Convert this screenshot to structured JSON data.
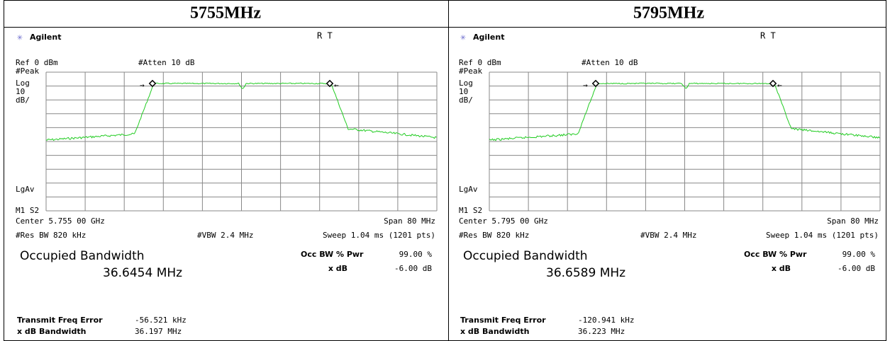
{
  "panels": [
    {
      "title": "5755MHz",
      "brand": "Agilent",
      "status": "R  T",
      "ref": "Ref 0 dBm",
      "atten": "#Atten 10 dB",
      "left_labels": [
        "#Peak",
        "Log",
        "10",
        "dB/"
      ],
      "lgav": "LgAv",
      "m1": "M1  S2",
      "center": "Center 5.755 00 GHz",
      "span": "Span 80 MHz",
      "res_bw": "#Res BW 820 kHz",
      "vbw": "#VBW 2.4 MHz",
      "sweep": "Sweep 1.04 ms (1201 pts)",
      "occ_title": "Occupied Bandwidth",
      "occ_value": "36.6454 MHz",
      "occ_pwr_label": "Occ BW % Pwr",
      "occ_pwr_value": "99.00 %",
      "xdb_label": "x dB",
      "xdb_value": "-6.00 dB",
      "tfe_label": "Transmit Freq Error",
      "tfe_value": "-56.521 kHz",
      "xbw_label": "x dB Bandwidth",
      "xbw_value": "36.197 MHz"
    },
    {
      "title": "5795MHz",
      "brand": "Agilent",
      "status": "R  T",
      "ref": "Ref 0 dBm",
      "atten": "#Atten 10 dB",
      "left_labels": [
        "#Peak",
        "Log",
        "10",
        "dB/"
      ],
      "lgav": "LgAv",
      "m1": "M1  S2",
      "center": "Center 5.795 00 GHz",
      "span": "Span 80 MHz",
      "res_bw": "#Res BW 820 kHz",
      "vbw": "#VBW 2.4 MHz",
      "sweep": "Sweep 1.04 ms (1201 pts)",
      "occ_title": "Occupied Bandwidth",
      "occ_value": "36.6589 MHz",
      "occ_pwr_label": "Occ BW % Pwr",
      "occ_pwr_value": "99.00 %",
      "xdb_label": "x dB",
      "xdb_value": "-6.00 dB",
      "tfe_label": "Transmit Freq Error",
      "tfe_value": "-120.941 kHz",
      "xbw_label": "x dB Bandwidth",
      "xbw_value": "36.223 MHz"
    }
  ]
}
